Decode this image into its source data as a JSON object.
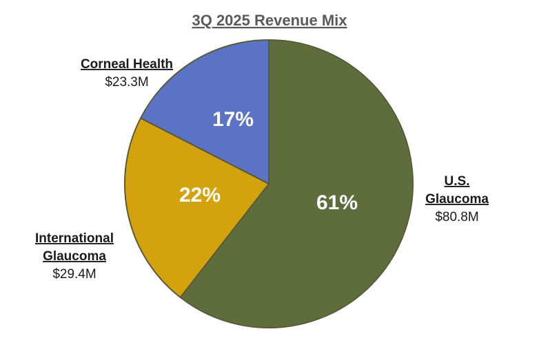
{
  "chart_data": {
    "type": "pie",
    "title": "3Q 2025 Revenue Mix",
    "slices": [
      {
        "name_lines": [
          "U.S.",
          "Glaucoma"
        ],
        "percent_label": "61%",
        "amount_label": "$80.8M",
        "value": 80.8,
        "color": "#5e6e3b"
      },
      {
        "name_lines": [
          "International",
          "Glaucoma"
        ],
        "percent_label": "22%",
        "amount_label": "$29.4M",
        "value": 29.4,
        "color": "#d4a20c"
      },
      {
        "name_lines": [
          "Corneal Health"
        ],
        "percent_label": "17%",
        "amount_label": "$23.3M",
        "value": 23.3,
        "color": "#5b73c4"
      }
    ],
    "slice_border_color": "#5a5a3a"
  }
}
